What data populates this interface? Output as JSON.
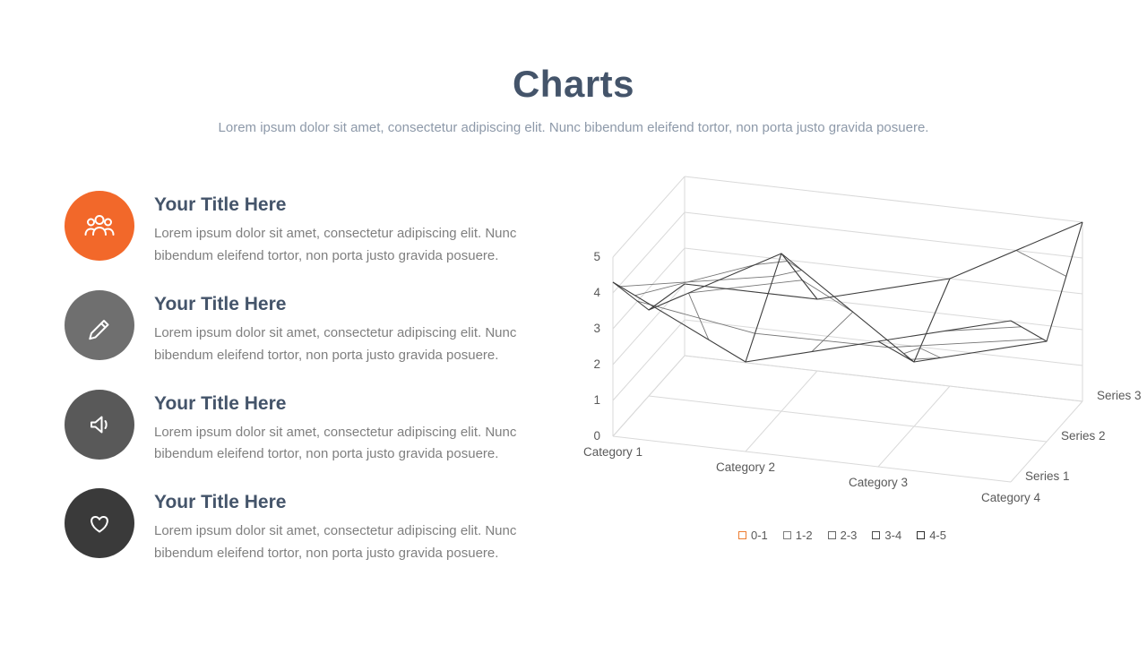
{
  "slide": {
    "title": "Charts",
    "subtitle": "Lorem ipsum dolor sit amet, consectetur adipiscing elit. Nunc bibendum eleifend tortor, non porta justo gravida posuere."
  },
  "list": {
    "items": [
      {
        "icon": "people-group-icon",
        "color": "#f2682a",
        "title": "Your Title Here",
        "body": "Lorem ipsum dolor sit amet, consectetur adipiscing elit. Nunc bibendum eleifend tortor, non porta justo gravida posuere."
      },
      {
        "icon": "pencil-icon",
        "color": "#6f6f6f",
        "title": "Your Title Here",
        "body": "Lorem ipsum dolor sit amet, consectetur adipiscing elit. Nunc bibendum eleifend tortor, non porta justo gravida posuere."
      },
      {
        "icon": "speaker-icon",
        "color": "#595959",
        "title": "Your Title Here",
        "body": "Lorem ipsum dolor sit amet, consectetur adipiscing elit. Nunc bibendum eleifend tortor, non porta justo gravida posuere."
      },
      {
        "icon": "heart-icon",
        "color": "#3a3a3a",
        "title": "Your Title Here",
        "body": "Lorem ipsum dolor sit amet, consectetur adipiscing elit. Nunc bibendum eleifend tortor, non porta justo gravida posuere."
      }
    ]
  },
  "chart_data": {
    "type": "surface-3d-wireframe",
    "categories": [
      "Category 1",
      "Category 2",
      "Category 3",
      "Category 4"
    ],
    "series": [
      {
        "name": "Series 1",
        "values": [
          4.3,
          2.5,
          3.5,
          4.5
        ]
      },
      {
        "name": "Series 2",
        "values": [
          2.4,
          4.4,
          1.8,
          2.8
        ]
      },
      {
        "name": "Series 3",
        "values": [
          2.0,
          2.0,
          3.0,
          5.0
        ]
      }
    ],
    "value_axis": {
      "min": 0,
      "max": 5,
      "step": 1,
      "ticks": [
        "0",
        "1",
        "2",
        "3",
        "4",
        "5"
      ]
    },
    "legend": [
      {
        "label": "0-1",
        "color": "#ed7d31"
      },
      {
        "label": "1-2",
        "color": "#7f7f7f"
      },
      {
        "label": "2-3",
        "color": "#6a6a6a"
      },
      {
        "label": "3-4",
        "color": "#4d4d4d"
      },
      {
        "label": "4-5",
        "color": "#303030"
      }
    ],
    "grid": true,
    "legend_position": "bottom",
    "wireframe_color": "#3d3d3d",
    "gridline_color": "#d9d9d9"
  }
}
